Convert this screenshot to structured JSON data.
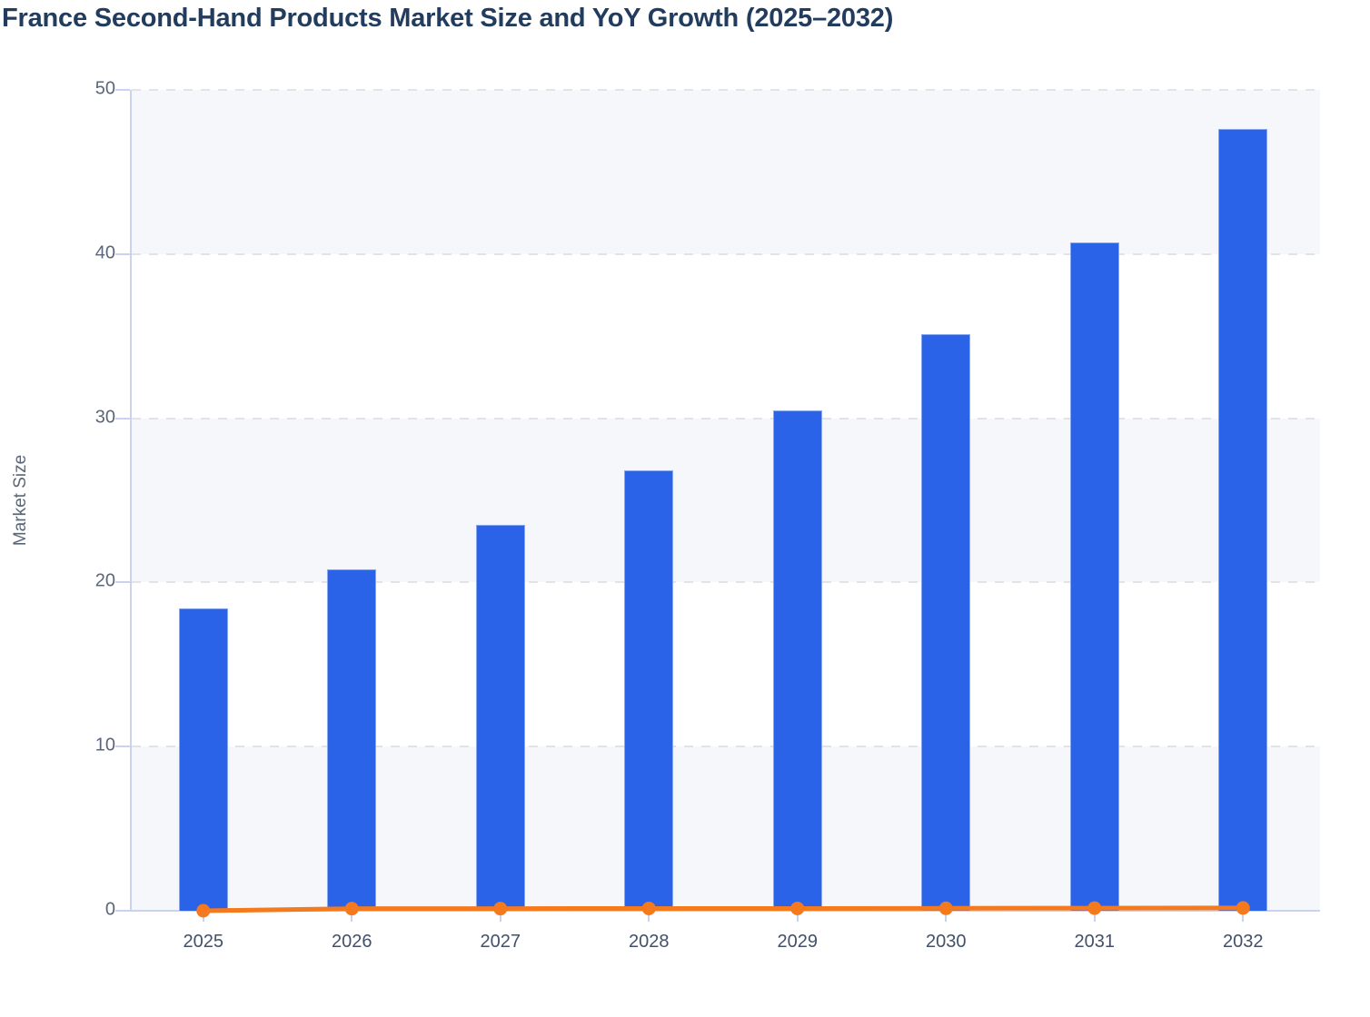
{
  "chart": {
    "title": "France Second-Hand Products Market Size and YoY Growth (2025–2032)",
    "y_axis_title": "Market Size"
  },
  "chart_data": {
    "type": "bar",
    "title": "France Second-Hand Products Market Size and YoY Growth (2025–2032)",
    "xlabel": "",
    "ylabel": "Market Size",
    "categories": [
      "2025",
      "2026",
      "2027",
      "2028",
      "2029",
      "2030",
      "2031",
      "2032"
    ],
    "series": [
      {
        "name": "Market Size",
        "type": "bar",
        "color": "#2a63e8",
        "values": [
          18.4,
          20.8,
          23.5,
          26.8,
          30.5,
          35.1,
          40.7,
          47.6
        ]
      },
      {
        "name": "YoY Growth",
        "type": "line",
        "color": "#f5791d",
        "values": [
          0,
          0.13,
          0.13,
          0.14,
          0.14,
          0.15,
          0.16,
          0.17
        ]
      }
    ],
    "ylim": [
      0,
      50
    ],
    "yticks": [
      0,
      10,
      20,
      30,
      40,
      50
    ],
    "grid": "horizontal-dashed",
    "legend": "none",
    "plot_background": "alternating horizontal bands"
  },
  "colors": {
    "bar_fill": "#2a63e8",
    "bar_border": "#86a7f3",
    "line": "#f5791d",
    "title_text": "#223c5e",
    "axis_line": "#c9d3ee",
    "y_tick_text": "#5b6678",
    "x_tick_text": "#42506a",
    "gridline": "#e1e3e9",
    "band_shaded": "#f6f7fa",
    "band_plain": "#ffffff"
  }
}
